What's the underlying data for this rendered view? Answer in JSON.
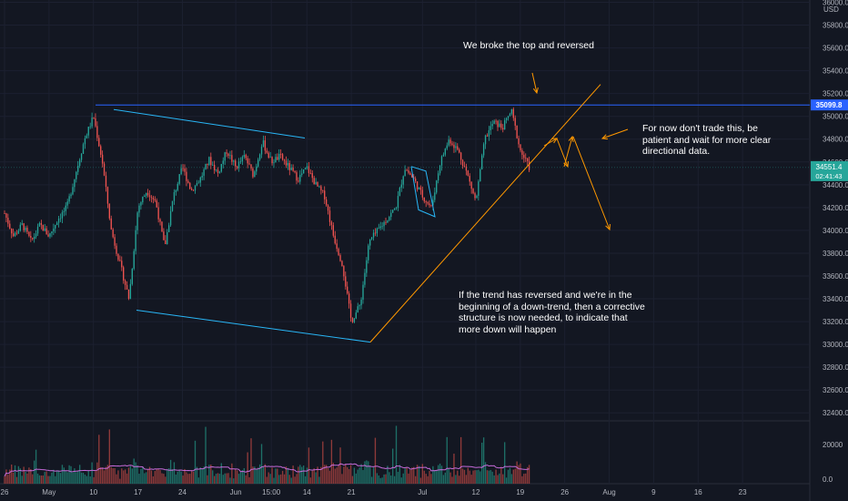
{
  "chart_data": {
    "type": "candlestick",
    "currency": "USD",
    "y_range": [
      32330,
      36020
    ],
    "y_ticks": [
      32400,
      32600,
      32800,
      33000,
      33200,
      33400,
      33600,
      33800,
      34000,
      34200,
      34400,
      34600,
      34800,
      35000,
      35200,
      35400,
      35600,
      35800,
      36000
    ],
    "y_tick_labels": [
      "32400.0",
      "32600.0",
      "32800.0",
      "33000.0",
      "33200.0",
      "33400.0",
      "33600.0",
      "33800.0",
      "34000.0",
      "34200.0",
      "34400.0",
      "34600.0",
      "34800.0",
      "35000.0",
      "35200.0",
      "35400.0",
      "35600.0",
      "35800.0",
      "36000.0"
    ],
    "x_range": [
      0,
      88
    ],
    "x_ticks": [
      {
        "t": 0,
        "label": "26"
      },
      {
        "t": 5,
        "label": "May"
      },
      {
        "t": 10,
        "label": "10"
      },
      {
        "t": 15,
        "label": "17"
      },
      {
        "t": 20,
        "label": "24"
      },
      {
        "t": 26,
        "label": "Jun"
      },
      {
        "t": 30,
        "label": "15:00"
      },
      {
        "t": 34,
        "label": "14"
      },
      {
        "t": 39,
        "label": "21"
      },
      {
        "t": 47,
        "label": "Jul"
      },
      {
        "t": 53,
        "label": "12"
      },
      {
        "t": 58,
        "label": "19"
      },
      {
        "t": 63,
        "label": "26"
      },
      {
        "t": 68,
        "label": "Aug"
      },
      {
        "t": 73,
        "label": "9"
      },
      {
        "t": 78,
        "label": "16"
      },
      {
        "t": 83,
        "label": "23"
      }
    ],
    "price_anchors": [
      [
        0,
        34150
      ],
      [
        1,
        33950
      ],
      [
        2,
        34050
      ],
      [
        3,
        33900
      ],
      [
        4,
        34050
      ],
      [
        5,
        33950
      ],
      [
        6,
        34100
      ],
      [
        7,
        34200
      ],
      [
        8,
        34500
      ],
      [
        9,
        34800
      ],
      [
        10,
        35000
      ],
      [
        11,
        34600
      ],
      [
        12,
        34000
      ],
      [
        13,
        33700
      ],
      [
        14,
        33400
      ],
      [
        15,
        34200
      ],
      [
        16,
        34350
      ],
      [
        17,
        34250
      ],
      [
        18,
        33850
      ],
      [
        19,
        34300
      ],
      [
        20,
        34550
      ],
      [
        21,
        34350
      ],
      [
        22,
        34450
      ],
      [
        23,
        34620
      ],
      [
        24,
        34500
      ],
      [
        25,
        34700
      ],
      [
        26,
        34550
      ],
      [
        27,
        34650
      ],
      [
        28,
        34480
      ],
      [
        29,
        34780
      ],
      [
        30,
        34600
      ],
      [
        31,
        34650
      ],
      [
        32,
        34550
      ],
      [
        33,
        34450
      ],
      [
        34,
        34550
      ],
      [
        35,
        34400
      ],
      [
        36,
        34300
      ],
      [
        37,
        33950
      ],
      [
        38,
        33700
      ],
      [
        39,
        33200
      ],
      [
        40,
        33350
      ],
      [
        41,
        33900
      ],
      [
        42,
        34000
      ],
      [
        43,
        34100
      ],
      [
        44,
        34200
      ],
      [
        45,
        34550
      ],
      [
        46,
        34450
      ],
      [
        47,
        34300
      ],
      [
        48,
        34200
      ],
      [
        49,
        34600
      ],
      [
        50,
        34800
      ],
      [
        51,
        34700
      ],
      [
        52,
        34500
      ],
      [
        53,
        34250
      ],
      [
        54,
        34800
      ],
      [
        55,
        34950
      ],
      [
        56,
        34900
      ],
      [
        57,
        35050
      ],
      [
        58,
        34700
      ],
      [
        59,
        34551
      ]
    ],
    "volume_y_ticks": [
      0,
      20000
    ],
    "volume_y_tick_labels": [
      "0.0",
      "20000"
    ],
    "current_price": "34551.4",
    "current_time": "02:41:43",
    "resistance_price": "35099.8",
    "colors": {
      "background": "#131722",
      "up": "#26a69a",
      "down": "#ef5350",
      "resistance": "#2962ff",
      "channel": "#29b6f6",
      "trendline": "#ff9800",
      "volume_ma": "#c46ad8",
      "text": "#b2b5be"
    }
  },
  "annotations": {
    "top": "We broke the top and reversed",
    "right": "For now don't trade this, be patient and wait for more clear directional data.",
    "bottom": "If the trend has reversed and we're in the beginning of a down-trend, then a corrective structure is now needed, to indicate that more down will happen"
  }
}
